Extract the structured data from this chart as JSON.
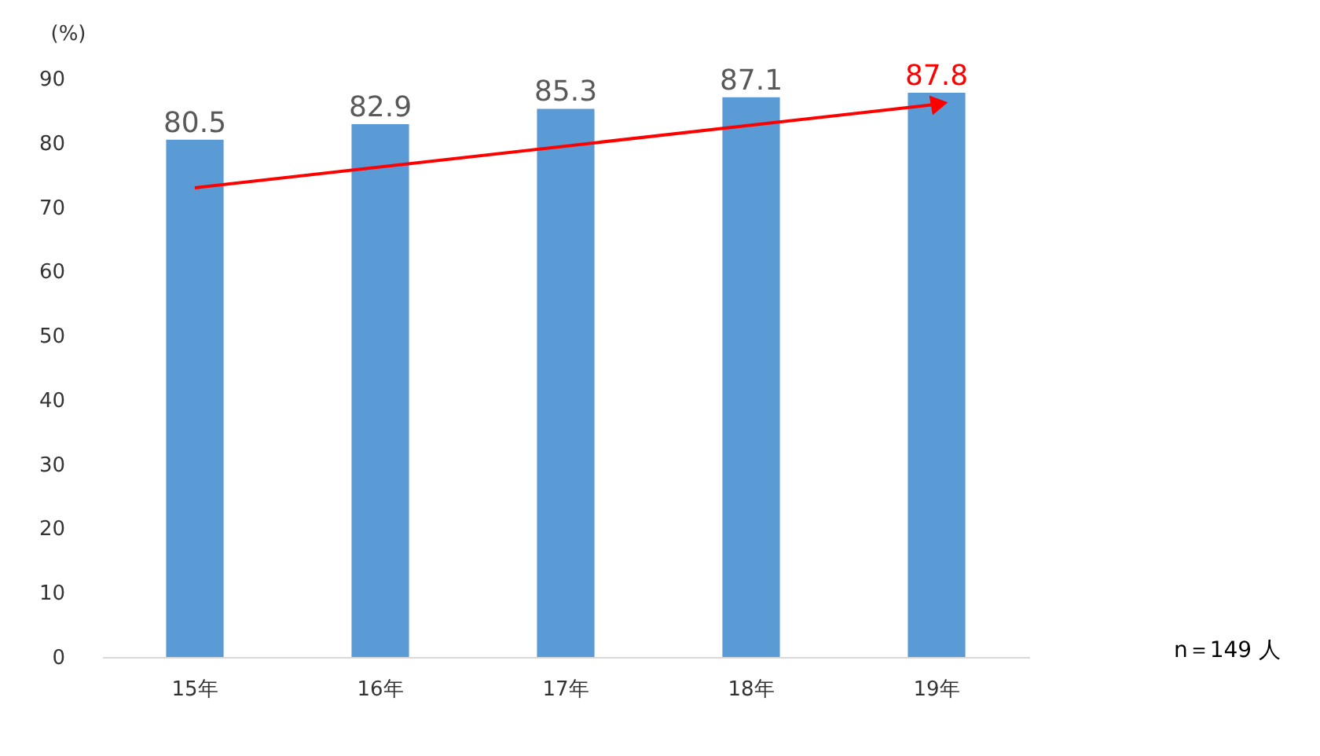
{
  "chart_data": {
    "type": "bar",
    "ylabel": "(%)",
    "categories": [
      "15年",
      "16年",
      "17年",
      "18年",
      "19年"
    ],
    "series": [
      {
        "color": "#5b9bd5",
        "values": [
          80.5,
          82.9,
          85.3,
          87.1,
          87.8
        ],
        "value_labels": [
          "80.5",
          "82.9",
          "85.3",
          "87.1",
          null
        ]
      },
      {
        "type": "line",
        "color": "#ff0000",
        "x": [
          "15年",
          "19年"
        ],
        "values": [
          73,
          86
        ]
      }
    ],
    "ylim": [
      0,
      90
    ],
    "yticks": [
      0,
      10,
      20,
      30,
      40,
      50,
      60,
      70,
      80,
      90
    ],
    "grid": false,
    "annotations": [
      {
        "text": "87.8",
        "x": "19年",
        "y": 87.8
      },
      "n＝149 人"
    ]
  }
}
